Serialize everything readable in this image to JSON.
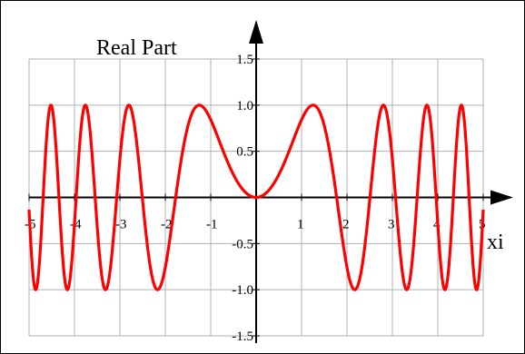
{
  "chart_data": {
    "type": "line",
    "title": "Real Part",
    "xlabel": "xi",
    "ylabel": "",
    "xlim": [
      -5,
      5
    ],
    "ylim": [
      -1.5,
      1.5
    ],
    "grid": true,
    "x_ticks": [
      {
        "value": -5,
        "label": "-5"
      },
      {
        "value": -4,
        "label": "-4"
      },
      {
        "value": -3,
        "label": "-3"
      },
      {
        "value": -2,
        "label": "-2"
      },
      {
        "value": -1,
        "label": "-1"
      },
      {
        "value": 1,
        "label": "1"
      },
      {
        "value": 2,
        "label": "2"
      },
      {
        "value": 3,
        "label": "3"
      },
      {
        "value": 4,
        "label": "4"
      },
      {
        "value": 5,
        "label": "5"
      }
    ],
    "y_ticks": [
      {
        "value": 1.5,
        "label": "1.5"
      },
      {
        "value": 1.0,
        "label": "1.0"
      },
      {
        "value": 0.5,
        "label": "0.5"
      },
      {
        "value": -0.5,
        "label": "-0.5"
      },
      {
        "value": -1.0,
        "label": "-1.0"
      },
      {
        "value": -1.5,
        "label": "-1.5"
      }
    ],
    "series": [
      {
        "function": "sin(x^2)",
        "color": "#ff0000",
        "x": [
          -5.0,
          -4.5,
          -4.0,
          -3.5,
          -3.0,
          -2.5,
          -2.0,
          -1.5,
          -1.25,
          -1.0,
          -0.75,
          -0.5,
          -0.25,
          0.0,
          0.25,
          0.5,
          0.75,
          1.0,
          1.25,
          1.5,
          2.0,
          2.5,
          3.0,
          3.5,
          4.0,
          4.5,
          5.0
        ],
        "y": [
          -0.132,
          0.971,
          -0.288,
          -0.31,
          0.412,
          -0.033,
          -0.757,
          0.778,
          0.999,
          0.841,
          0.533,
          0.247,
          0.062,
          0.0,
          0.062,
          0.247,
          0.533,
          0.841,
          0.999,
          0.778,
          -0.757,
          -0.033,
          0.412,
          -0.31,
          -0.288,
          0.971,
          -0.132
        ]
      }
    ]
  }
}
